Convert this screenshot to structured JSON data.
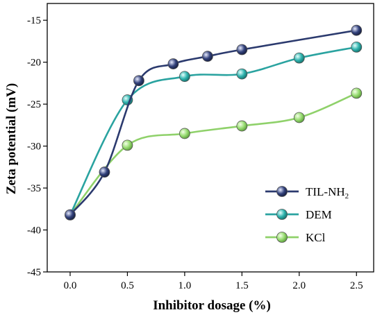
{
  "chart_data": {
    "type": "line",
    "xlabel": "Inhibitor dosage (%)",
    "ylabel": "Zeta potential (mV)",
    "xlim": [
      -0.2,
      2.65
    ],
    "ylim": [
      -45,
      -13
    ],
    "xticks": [
      0.0,
      0.5,
      1.0,
      1.5,
      2.0,
      2.5
    ],
    "xtick_labels": [
      "0.0",
      "0.5",
      "1.0",
      "1.5",
      "2.0",
      "2.5"
    ],
    "yticks": [
      -45,
      -40,
      -35,
      -30,
      -25,
      -20,
      -15
    ],
    "ytick_labels": [
      "-45",
      "-40",
      "-35",
      "-30",
      "-25",
      "-20",
      "-15"
    ],
    "grid": false,
    "legend_position": "lower-right",
    "series": [
      {
        "name": "TIL-NH",
        "name_sub": "2",
        "color": "#2b3a6e",
        "marker_color": "#33427c",
        "x": [
          0.0,
          0.3,
          0.6,
          0.9,
          1.2,
          1.5,
          2.5
        ],
        "y": [
          -38.2,
          -33.1,
          -22.2,
          -20.2,
          -19.3,
          -18.5,
          -16.2
        ]
      },
      {
        "name": "DEM",
        "color": "#2aa3a0",
        "marker_color": "#2fb3ae",
        "x": [
          0.0,
          0.5,
          1.0,
          1.5,
          2.0,
          2.5
        ],
        "y": [
          -38.2,
          -24.5,
          -21.7,
          -21.4,
          -19.5,
          -18.2
        ]
      },
      {
        "name": "KCl",
        "color": "#8fd16a",
        "marker_color": "#98dc72",
        "x": [
          0.0,
          0.5,
          1.0,
          1.5,
          2.0,
          2.5
        ],
        "y": [
          -38.2,
          -29.9,
          -28.5,
          -27.6,
          -26.6,
          -23.7
        ]
      }
    ]
  }
}
